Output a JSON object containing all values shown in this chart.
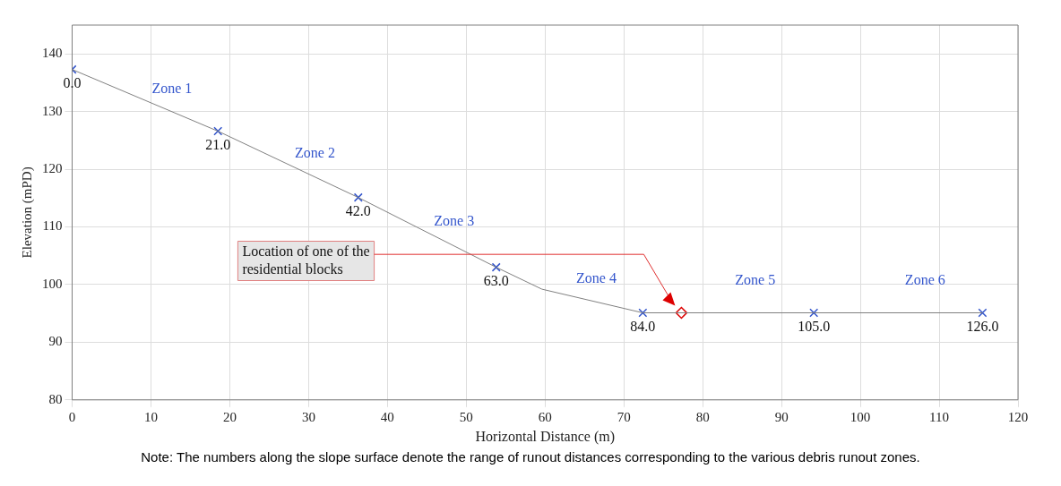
{
  "chart_data": {
    "type": "line",
    "xlabel": "Horizontal Distance (m)",
    "ylabel": "Elevation (mPD)",
    "xlim": [
      0,
      120
    ],
    "xticks": [
      0,
      10,
      20,
      30,
      40,
      50,
      60,
      70,
      80,
      90,
      100,
      110,
      120
    ],
    "ylim": [
      80,
      145
    ],
    "yticks": [
      80,
      90,
      100,
      110,
      120,
      130,
      140
    ],
    "grid": true,
    "legend": false,
    "series": [
      {
        "color": "#808080",
        "marker": "none",
        "x": [
          0,
          18.5,
          36.3,
          53.8,
          59.6,
          72.4,
          94.1,
          115.5
        ],
        "values": [
          137.3,
          126.6,
          115.1,
          103,
          99.2,
          95.1,
          95.1,
          95.1
        ]
      },
      {
        "type": "scatter",
        "color": "#3355cc",
        "marker": "cross",
        "x": [
          0,
          18.5,
          36.3,
          53.8,
          72.4,
          94.1,
          115.5
        ],
        "values": [
          137.3,
          126.6,
          115.1,
          103,
          95.1,
          95.1,
          95.1
        ]
      },
      {
        "type": "scatter",
        "color": "#dd0000",
        "marker": "diamond",
        "x": [
          77.3
        ],
        "values": [
          95.1
        ]
      }
    ],
    "annotations": [
      "Zone 1",
      "Zone 2",
      "Zone 3",
      "Zone 4",
      "Zone 5",
      "Zone 6",
      {
        "text": "0.0",
        "x": 0,
        "y": 137.3
      },
      {
        "text": "21.0",
        "x": 18.5,
        "y": 126.6
      },
      {
        "text": "42.0",
        "x": 36.3,
        "y": 115.1
      },
      {
        "text": "63.0",
        "x": 53.8,
        "y": 103
      },
      {
        "text": "84.0",
        "x": 72.4,
        "y": 95.1
      },
      {
        "text": "105.0",
        "x": 94.1,
        "y": 95.1
      },
      {
        "text": "126.0",
        "x": 115.5,
        "y": 95.1
      },
      "Location of one of the residential blocks",
      "Note: The numbers along the slope surface denote the range of runout distances corresponding to the various debris runout zones."
    ]
  }
}
